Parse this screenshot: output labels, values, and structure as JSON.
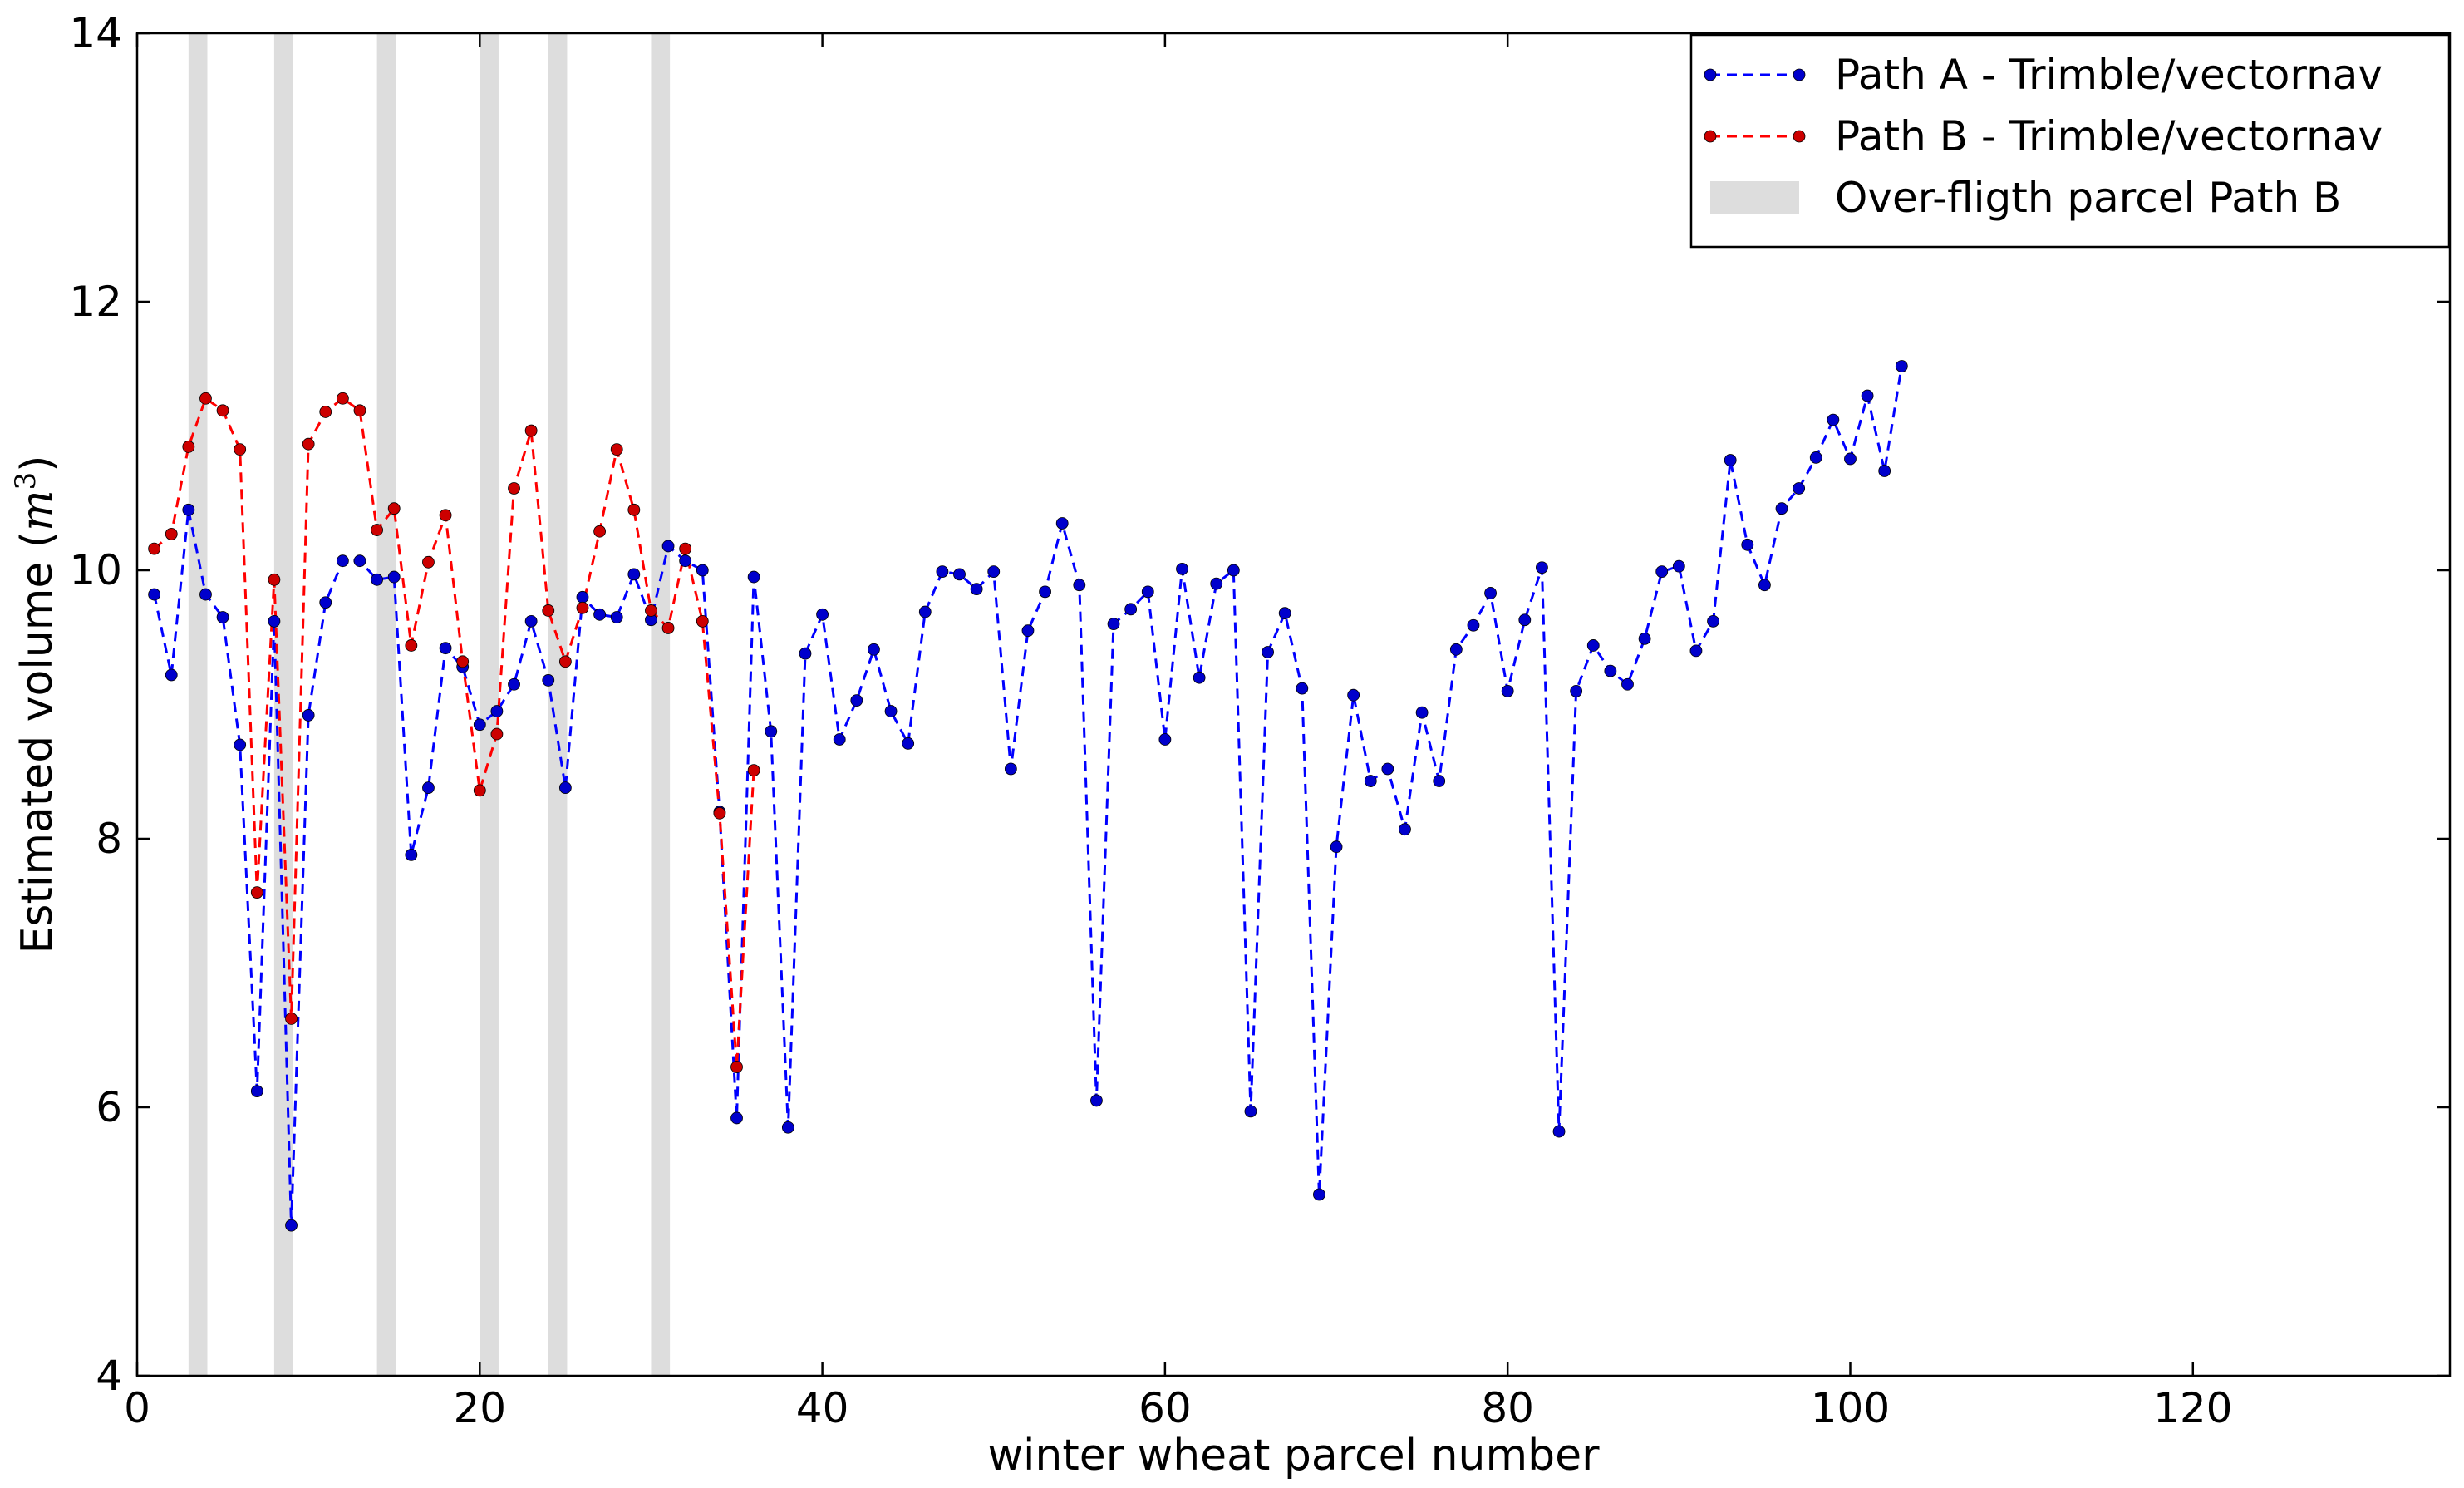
{
  "chart_data": {
    "type": "line",
    "xlabel": "winter wheat parcel number",
    "ylabel_main": "Estimated volume (",
    "ylabel_math": "m",
    "ylabel_sup": "3",
    "ylabel_close": ")",
    "xlim": [
      0,
      135
    ],
    "ylim": [
      4,
      14
    ],
    "xticks": [
      0,
      20,
      40,
      60,
      80,
      100,
      120
    ],
    "yticks": [
      4,
      6,
      8,
      10,
      12,
      14
    ],
    "legend_position": "top-right",
    "legend": [
      {
        "label": "Path A - Trimble/vectornav",
        "kind": "line",
        "color": "#0000ff"
      },
      {
        "label": "Path B - Trimble/vectornav",
        "kind": "line",
        "color": "#ff0000"
      },
      {
        "label": "Over-fligth parcel Path B",
        "kind": "band",
        "color": "#dddddd"
      }
    ],
    "bands": [
      [
        3,
        4.1
      ],
      [
        8,
        9.1
      ],
      [
        14,
        15.1
      ],
      [
        20,
        21.1
      ],
      [
        24,
        25.1
      ],
      [
        30,
        31.1
      ]
    ],
    "series": [
      {
        "name": "Path A - Trimble/vectornav",
        "color": "#0000ff",
        "marker_color": "#0000cc",
        "style": "dashed",
        "x": [
          1,
          2,
          3,
          4,
          5,
          6,
          7,
          8,
          9,
          10,
          11,
          12,
          13,
          14,
          15,
          16,
          17,
          18,
          19,
          20,
          21,
          22,
          23,
          24,
          25,
          26,
          27,
          28,
          29,
          30,
          31,
          32,
          33,
          34,
          35,
          36,
          37,
          38,
          39,
          40,
          41,
          42,
          43,
          44,
          45,
          46,
          47,
          48,
          49,
          50,
          51,
          52,
          53,
          54,
          55,
          56,
          57,
          58,
          59,
          60,
          61,
          62,
          63,
          64,
          65,
          66,
          67,
          68,
          69,
          70,
          71,
          72,
          73,
          74,
          75,
          76,
          77,
          78,
          79,
          80,
          81,
          82,
          83,
          84,
          85,
          86,
          87,
          88,
          89,
          90,
          91,
          92,
          93,
          94,
          95,
          96,
          97,
          98,
          99,
          100,
          101,
          102,
          103
        ],
        "y": [
          9.82,
          9.22,
          10.45,
          9.82,
          9.65,
          8.7,
          6.12,
          9.62,
          5.12,
          8.92,
          9.76,
          10.07,
          10.07,
          9.93,
          9.95,
          7.88,
          8.38,
          9.42,
          9.28,
          8.85,
          8.95,
          9.15,
          9.62,
          9.18,
          8.38,
          9.8,
          9.67,
          9.65,
          9.97,
          9.63,
          10.18,
          10.07,
          10.0,
          8.2,
          5.92,
          9.95,
          8.8,
          5.85,
          9.38,
          9.67,
          8.74,
          9.03,
          9.41,
          8.95,
          8.71,
          9.69,
          9.99,
          9.97,
          9.86,
          9.99,
          8.52,
          9.55,
          9.84,
          10.35,
          9.89,
          6.05,
          9.6,
          9.71,
          9.84,
          8.74,
          10.01,
          9.2,
          9.9,
          10.0,
          5.97,
          9.39,
          9.68,
          9.12,
          5.35,
          7.94,
          9.07,
          8.43,
          8.52,
          8.07,
          8.94,
          8.43,
          9.41,
          9.59,
          9.83,
          9.1,
          9.63,
          10.02,
          5.82,
          9.1,
          9.44,
          9.25,
          9.15,
          9.49,
          9.99,
          10.03,
          9.4,
          9.62,
          10.82,
          10.19,
          9.89,
          10.46,
          10.61,
          10.84,
          11.12,
          10.83,
          11.3,
          10.74,
          11.52
        ]
      },
      {
        "name": "Path B - Trimble/vectornav",
        "color": "#ff0000",
        "marker_color": "#cc0000",
        "style": "dashed",
        "x": [
          1,
          2,
          3,
          4,
          5,
          6,
          7,
          8,
          9,
          10,
          11,
          12,
          13,
          14,
          15,
          16,
          17,
          18,
          19,
          20,
          21,
          22,
          23,
          24,
          25,
          26,
          27,
          28,
          29,
          30,
          31,
          32,
          33,
          34,
          35,
          36
        ],
        "y": [
          10.16,
          10.27,
          10.92,
          11.28,
          11.19,
          10.9,
          7.6,
          9.93,
          6.66,
          10.94,
          11.18,
          11.28,
          11.19,
          10.3,
          10.46,
          9.44,
          10.06,
          10.41,
          9.32,
          8.36,
          8.78,
          10.61,
          11.04,
          9.7,
          9.32,
          9.72,
          10.29,
          10.9,
          10.45,
          9.7,
          9.57,
          10.16,
          9.62,
          8.19,
          6.3,
          8.51
        ]
      }
    ]
  }
}
